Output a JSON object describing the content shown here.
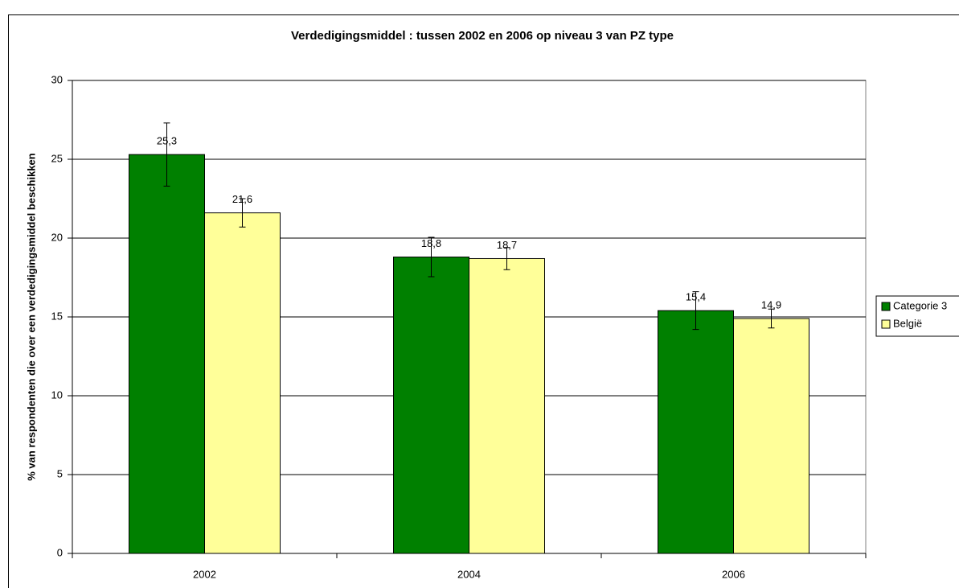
{
  "chart_data": {
    "type": "bar",
    "title": "Verdedigingsmiddel : tussen 2002 en 2006 op niveau 3 van PZ type",
    "y_label": "% van respondenten die over een verdedigingsmiddel beschikken",
    "categories": [
      "2002",
      "2004",
      "2006"
    ],
    "series": [
      {
        "name": "Categorie 3",
        "color": "#008000",
        "values": [
          25.3,
          18.8,
          15.4
        ],
        "value_labels": [
          "25,3",
          "18,8",
          "15,4"
        ],
        "errors": [
          2.0,
          1.25,
          1.2
        ]
      },
      {
        "name": "België",
        "color": "#ffff99",
        "values": [
          21.6,
          18.7,
          14.9
        ],
        "value_labels": [
          "21,6",
          "18,7",
          "14,9"
        ],
        "errors": [
          0.9,
          0.7,
          0.6
        ]
      }
    ],
    "ylim": [
      0,
      30
    ],
    "yticks": [
      0,
      5,
      10,
      15,
      20,
      25,
      30
    ],
    "grid": true,
    "legend": "right"
  }
}
